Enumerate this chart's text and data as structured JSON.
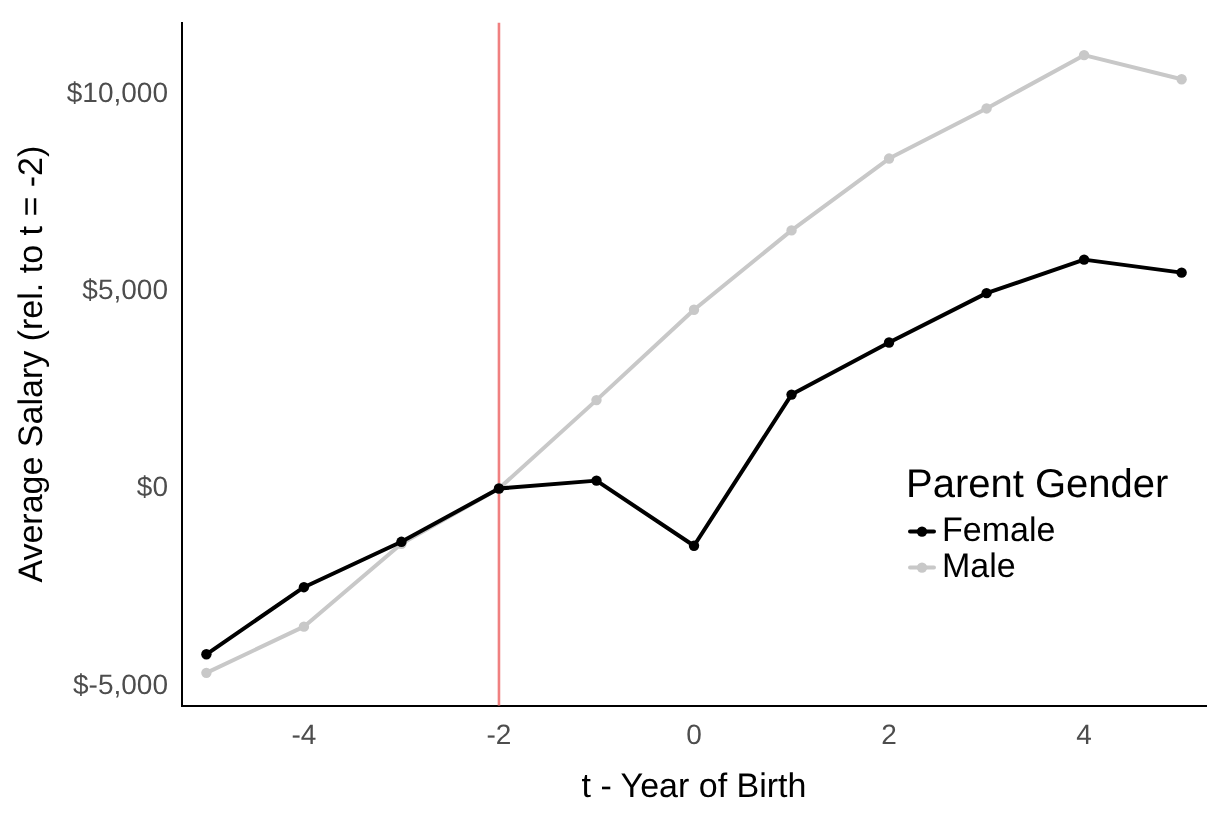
{
  "chart_data": {
    "type": "line",
    "xlabel": "t - Year of Birth",
    "ylabel": "Average Salary (rel. to t = -2)",
    "legend_title": "Parent Gender",
    "legend": "bottom right",
    "marker": "circle",
    "line_style": "solid",
    "grid": false,
    "x": [
      -5,
      -4,
      -3,
      -2,
      -1,
      0,
      1,
      2,
      3,
      4,
      5
    ],
    "series": [
      {
        "name": "Female",
        "color": "#000000",
        "values": [
          -4200,
          -2500,
          -1350,
          0,
          200,
          -1450,
          2380,
          3700,
          4950,
          5800,
          5470
        ]
      },
      {
        "name": "Male",
        "color": "#c8c8c8",
        "values": [
          -4670,
          -3500,
          -1400,
          0,
          2240,
          4530,
          6540,
          8360,
          9630,
          10980,
          10370
        ]
      }
    ],
    "xlim": [
      -5.25,
      5.25
    ],
    "xticks": [
      -4,
      -2,
      0,
      2,
      4
    ],
    "ylim": [
      -5500,
      11800
    ],
    "yticks": [
      {
        "value": -5000,
        "label": "$-5,000"
      },
      {
        "value": 0,
        "label": "$0"
      },
      {
        "value": 5000,
        "label": "$5,000"
      },
      {
        "value": 10000,
        "label": "$10,000"
      }
    ],
    "ref_lines": [
      {
        "axis": "x",
        "value": -2,
        "color": "#f08080"
      }
    ]
  }
}
